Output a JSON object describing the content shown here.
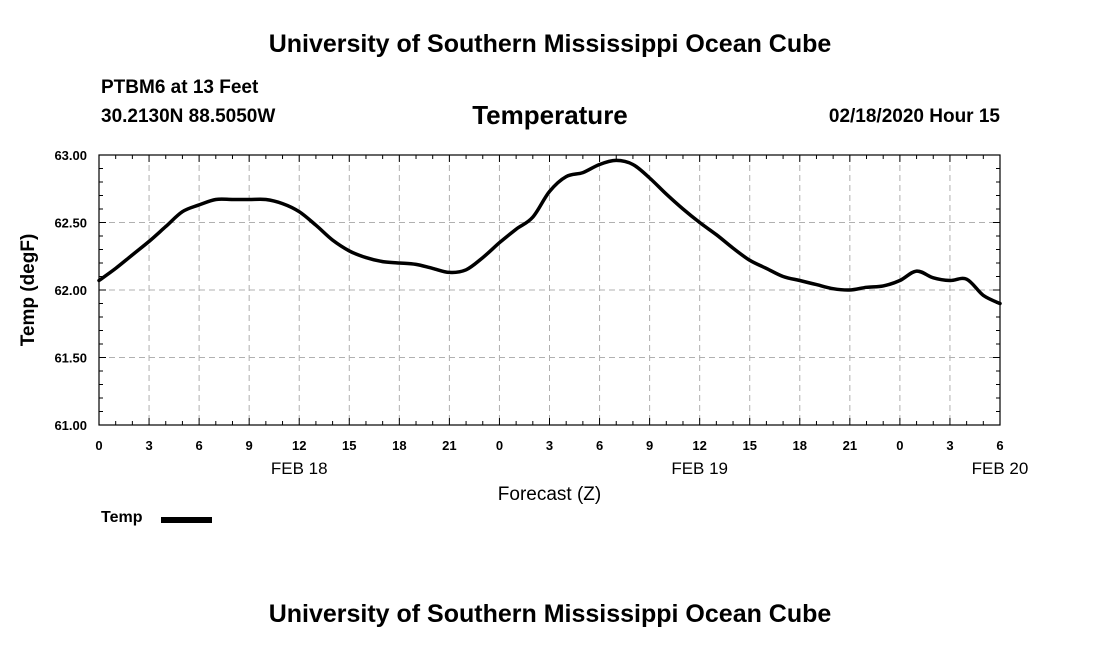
{
  "header": {
    "top_title": "University of Southern Mississippi Ocean Cube",
    "bottom_title": "University of Southern Mississippi Ocean Cube",
    "station": "PTBM6 at 13 Feet",
    "coords": "30.2130N 88.5050W",
    "datetime": "02/18/2020 Hour 15"
  },
  "chart_data": {
    "type": "line",
    "title": "Temperature",
    "xlabel": "Forecast (Z)",
    "ylabel": "Temp (degF)",
    "ylim": [
      61.0,
      63.0
    ],
    "xlim": [
      0,
      54
    ],
    "grid": true,
    "y_ticks": [
      61.0,
      61.5,
      62.0,
      62.5,
      63.0
    ],
    "y_tick_labels": [
      "61.00",
      "61.50",
      "62.00",
      "62.50",
      "63.00"
    ],
    "x_tick_hours": [
      0,
      3,
      6,
      9,
      12,
      15,
      18,
      21,
      24,
      27,
      30,
      33,
      36,
      39,
      42,
      45,
      48,
      51,
      54
    ],
    "x_tick_labels": [
      "0",
      "3",
      "6",
      "9",
      "12",
      "15",
      "18",
      "21",
      "0",
      "3",
      "6",
      "9",
      "12",
      "15",
      "18",
      "21",
      "0",
      "3",
      "6"
    ],
    "date_labels": [
      {
        "hour": 12,
        "label": "FEB 18"
      },
      {
        "hour": 36,
        "label": "FEB 19"
      },
      {
        "hour": 54,
        "label": "FEB 20"
      }
    ],
    "legend": [
      {
        "name": "Temp",
        "color": "#000000"
      }
    ],
    "series": [
      {
        "name": "Temp",
        "color": "#000000",
        "x": [
          0,
          1,
          2,
          3,
          4,
          5,
          6,
          7,
          8,
          9,
          10,
          11,
          12,
          13,
          14,
          15,
          16,
          17,
          18,
          19,
          20,
          21,
          22,
          23,
          24,
          25,
          26,
          27,
          28,
          29,
          30,
          31,
          32,
          33,
          34,
          35,
          36,
          37,
          38,
          39,
          40,
          41,
          42,
          43,
          44,
          45,
          46,
          47,
          48,
          49,
          50,
          51,
          52,
          53,
          54
        ],
        "values": [
          62.07,
          62.16,
          62.26,
          62.36,
          62.47,
          62.58,
          62.63,
          62.67,
          62.67,
          62.67,
          62.67,
          62.64,
          62.58,
          62.48,
          62.37,
          62.29,
          62.24,
          62.21,
          62.2,
          62.19,
          62.16,
          62.13,
          62.15,
          62.24,
          62.35,
          62.45,
          62.54,
          62.73,
          62.84,
          62.87,
          62.93,
          62.96,
          62.93,
          62.83,
          62.71,
          62.6,
          62.5,
          62.41,
          62.31,
          62.22,
          62.16,
          62.1,
          62.07,
          62.04,
          62.01,
          62.0,
          62.02,
          62.03,
          62.07,
          62.14,
          62.09,
          62.07,
          62.08,
          61.96,
          61.9
        ]
      }
    ]
  }
}
